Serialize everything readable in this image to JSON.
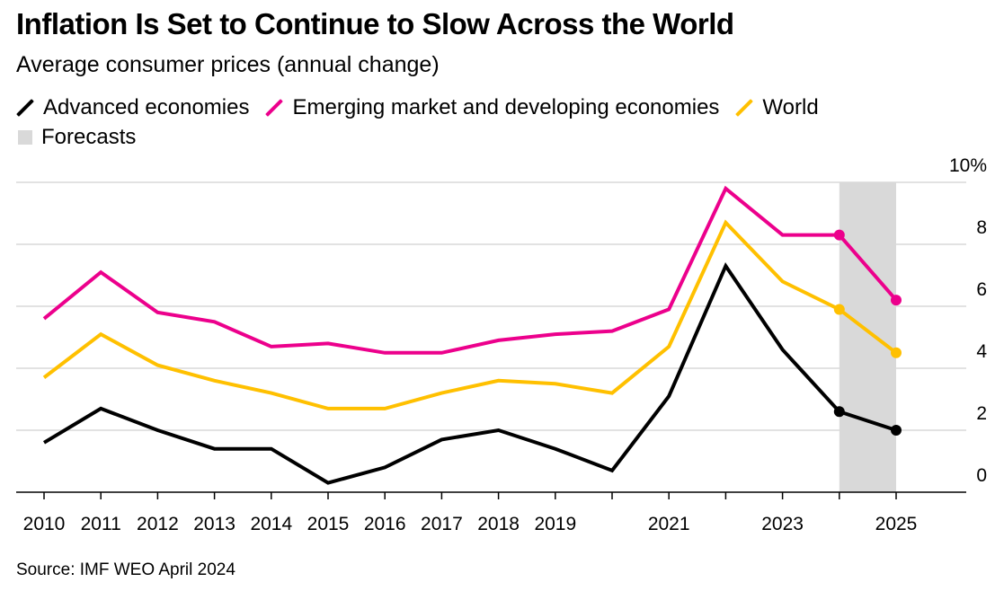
{
  "header": {
    "title": "Inflation Is Set to Continue to Slow Across the World",
    "subtitle": "Average consumer prices (annual change)"
  },
  "legend": {
    "items": [
      {
        "label": "Advanced economies",
        "color": "#000000"
      },
      {
        "label": "Emerging market and developing economies",
        "color": "#ec008c"
      },
      {
        "label": "World",
        "color": "#ffc000"
      }
    ],
    "forecast_label": "Forecasts",
    "forecast_color": "#d9d9d9"
  },
  "footer": {
    "source": "Source: IMF WEO April 2024"
  },
  "chart_data": {
    "type": "line",
    "x": [
      2010,
      2011,
      2012,
      2013,
      2014,
      2015,
      2016,
      2017,
      2018,
      2019,
      2020,
      2021,
      2022,
      2023,
      2024,
      2025
    ],
    "x_tick_labels": [
      "2010",
      "2011",
      "2012",
      "2013",
      "2014",
      "2015",
      "2016",
      "2017",
      "2018",
      "2019",
      "",
      "2021",
      "",
      "2023",
      "",
      "2025"
    ],
    "y_ticks": [
      0,
      2,
      4,
      6,
      8,
      10
    ],
    "y_tick_labels": [
      "0",
      "2",
      "4",
      "6",
      "8",
      "10%"
    ],
    "ylim": [
      0,
      10
    ],
    "grid": true,
    "forecast_range": [
      2024,
      2025
    ],
    "series": [
      {
        "name": "Advanced economies",
        "color": "#000000",
        "values": [
          1.6,
          2.7,
          2.0,
          1.4,
          1.4,
          0.3,
          0.8,
          1.7,
          2.0,
          1.4,
          0.7,
          3.1,
          7.3,
          4.6,
          2.6,
          2.0
        ],
        "forecast_points": [
          14,
          15
        ]
      },
      {
        "name": "Emerging market and developing economies",
        "color": "#ec008c",
        "values": [
          5.6,
          7.1,
          5.8,
          5.5,
          4.7,
          4.8,
          4.5,
          4.5,
          4.9,
          5.1,
          5.2,
          5.9,
          9.8,
          8.3,
          8.3,
          6.2
        ],
        "forecast_points": [
          14,
          15
        ]
      },
      {
        "name": "World",
        "color": "#ffc000",
        "values": [
          3.7,
          5.1,
          4.1,
          3.6,
          3.2,
          2.7,
          2.7,
          3.2,
          3.6,
          3.5,
          3.2,
          4.7,
          8.7,
          6.8,
          5.9,
          4.5
        ],
        "forecast_points": [
          14,
          15
        ]
      }
    ]
  }
}
